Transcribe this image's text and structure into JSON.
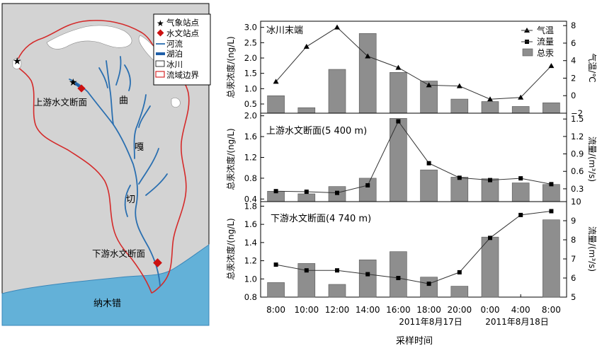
{
  "map": {
    "legend": [
      {
        "symbol": "star",
        "label": "气象站点"
      },
      {
        "symbol": "diamond",
        "label": "水文站点",
        "color": "#cc1111"
      },
      {
        "symbol": "river",
        "label": "河流",
        "color": "#2a6fb0"
      },
      {
        "symbol": "lake",
        "label": "湖泊",
        "color": "#1f5fa8"
      },
      {
        "symbol": "glacier",
        "label": "冰川",
        "color": "#ffffff"
      },
      {
        "symbol": "boundary",
        "label": "流域边界",
        "color": "#d42a2a"
      }
    ],
    "labels": {
      "upstream_section": "上游水文断面",
      "downstream_section": "下游水文断面",
      "river_char_1": "曲",
      "river_char_2": "嘎",
      "river_char_3": "切",
      "lake_name": "纳木错"
    },
    "colors": {
      "land": "#d3d3d3",
      "lake": "#63b1d8"
    }
  },
  "chart_data": [
    {
      "type": "bar",
      "title": "冰川末端",
      "categories": [
        "8:00",
        "10:00",
        "12:00",
        "14:00",
        "16:00",
        "18:00",
        "20:00",
        "0:00",
        "4:00",
        "8:00"
      ],
      "ylabel": "总汞浓度/(ng/L)",
      "ylim": [
        0.2,
        3.2
      ],
      "yticks": [
        "0.5",
        "1.0",
        "1.5",
        "2.0",
        "2.5",
        "3.0"
      ],
      "y2label": "气温/℃",
      "y2lim": [
        -2,
        8.5
      ],
      "y2ticks": [
        "−2",
        "0",
        "2",
        "4",
        "6",
        "8"
      ],
      "series": [
        {
          "name": "总汞",
          "kind": "bar",
          "values": [
            0.77,
            0.38,
            1.63,
            2.8,
            1.53,
            1.25,
            0.66,
            0.58,
            0.42,
            0.54
          ]
        },
        {
          "name": "气温",
          "kind": "line",
          "marker": "triangle",
          "axis": "right",
          "values": [
            1.6,
            5.6,
            7.8,
            4.5,
            3.2,
            1.2,
            1.1,
            -0.4,
            -0.2,
            3.4
          ]
        }
      ],
      "legend": [
        {
          "marker": "triangle",
          "label": "气温"
        },
        {
          "marker": "square",
          "label": "流量"
        },
        {
          "marker": "bar",
          "label": "总汞"
        }
      ],
      "legend_position": "top-right"
    },
    {
      "type": "bar",
      "title": "上游水文断面(5 400 m)",
      "categories": [
        "8:00",
        "10:00",
        "12:00",
        "14:00",
        "16:00",
        "18:00",
        "20:00",
        "0:00",
        "4:00",
        "8:00"
      ],
      "ylabel": "总汞浓度/(ng/L)",
      "ylim": [
        0.35,
        2.05
      ],
      "yticks": [
        "0.4",
        "0.8",
        "1.2",
        "1.6",
        "2.0"
      ],
      "y2label": "流量/(m³/s)",
      "y2lim": [
        0.08,
        1.6
      ],
      "y2ticks": [
        "0.3",
        "0.6",
        "0.9",
        "1.2",
        "1.5"
      ],
      "series": [
        {
          "name": "总汞",
          "kind": "bar",
          "values": [
            0.55,
            0.5,
            0.64,
            0.8,
            1.95,
            0.96,
            0.82,
            0.79,
            0.71,
            0.68
          ]
        },
        {
          "name": "流量",
          "kind": "line",
          "marker": "square",
          "axis": "right",
          "values": [
            0.26,
            0.25,
            0.23,
            0.36,
            1.46,
            0.74,
            0.49,
            0.45,
            0.48,
            0.38
          ]
        }
      ]
    },
    {
      "type": "bar",
      "title": "下游水文断面(4 740 m)",
      "categories": [
        "8:00",
        "10:00",
        "12:00",
        "14:00",
        "16:00",
        "18:00",
        "20:00",
        "0:00",
        "4:00",
        "8:00"
      ],
      "ylabel": "总汞浓度/(ng/L)",
      "ylim": [
        0.8,
        1.85
      ],
      "yticks": [
        "0.8",
        "1.0",
        "1.2",
        "1.4",
        "1.6",
        "1.8"
      ],
      "y2label": "流量/(m³/s)",
      "y2lim": [
        5,
        10
      ],
      "y2ticks": [
        "5",
        "6",
        "7",
        "8",
        "9",
        "10"
      ],
      "series": [
        {
          "name": "总汞",
          "kind": "bar",
          "values": [
            0.96,
            1.17,
            0.94,
            1.21,
            1.3,
            1.02,
            0.92,
            1.46,
            null,
            1.65
          ]
        },
        {
          "name": "流量",
          "kind": "line",
          "marker": "square",
          "axis": "right",
          "values": [
            6.7,
            6.4,
            6.4,
            6.2,
            6.0,
            5.7,
            6.3,
            8.1,
            9.3,
            9.5
          ]
        }
      ]
    }
  ],
  "x_axis": {
    "date_labels": [
      "2011年8月17日",
      "2011年8月18日"
    ],
    "xlabel": "采样时间"
  },
  "colors": {
    "bar": "#8e8e8e",
    "line": "#333333",
    "axis": "#000000"
  }
}
